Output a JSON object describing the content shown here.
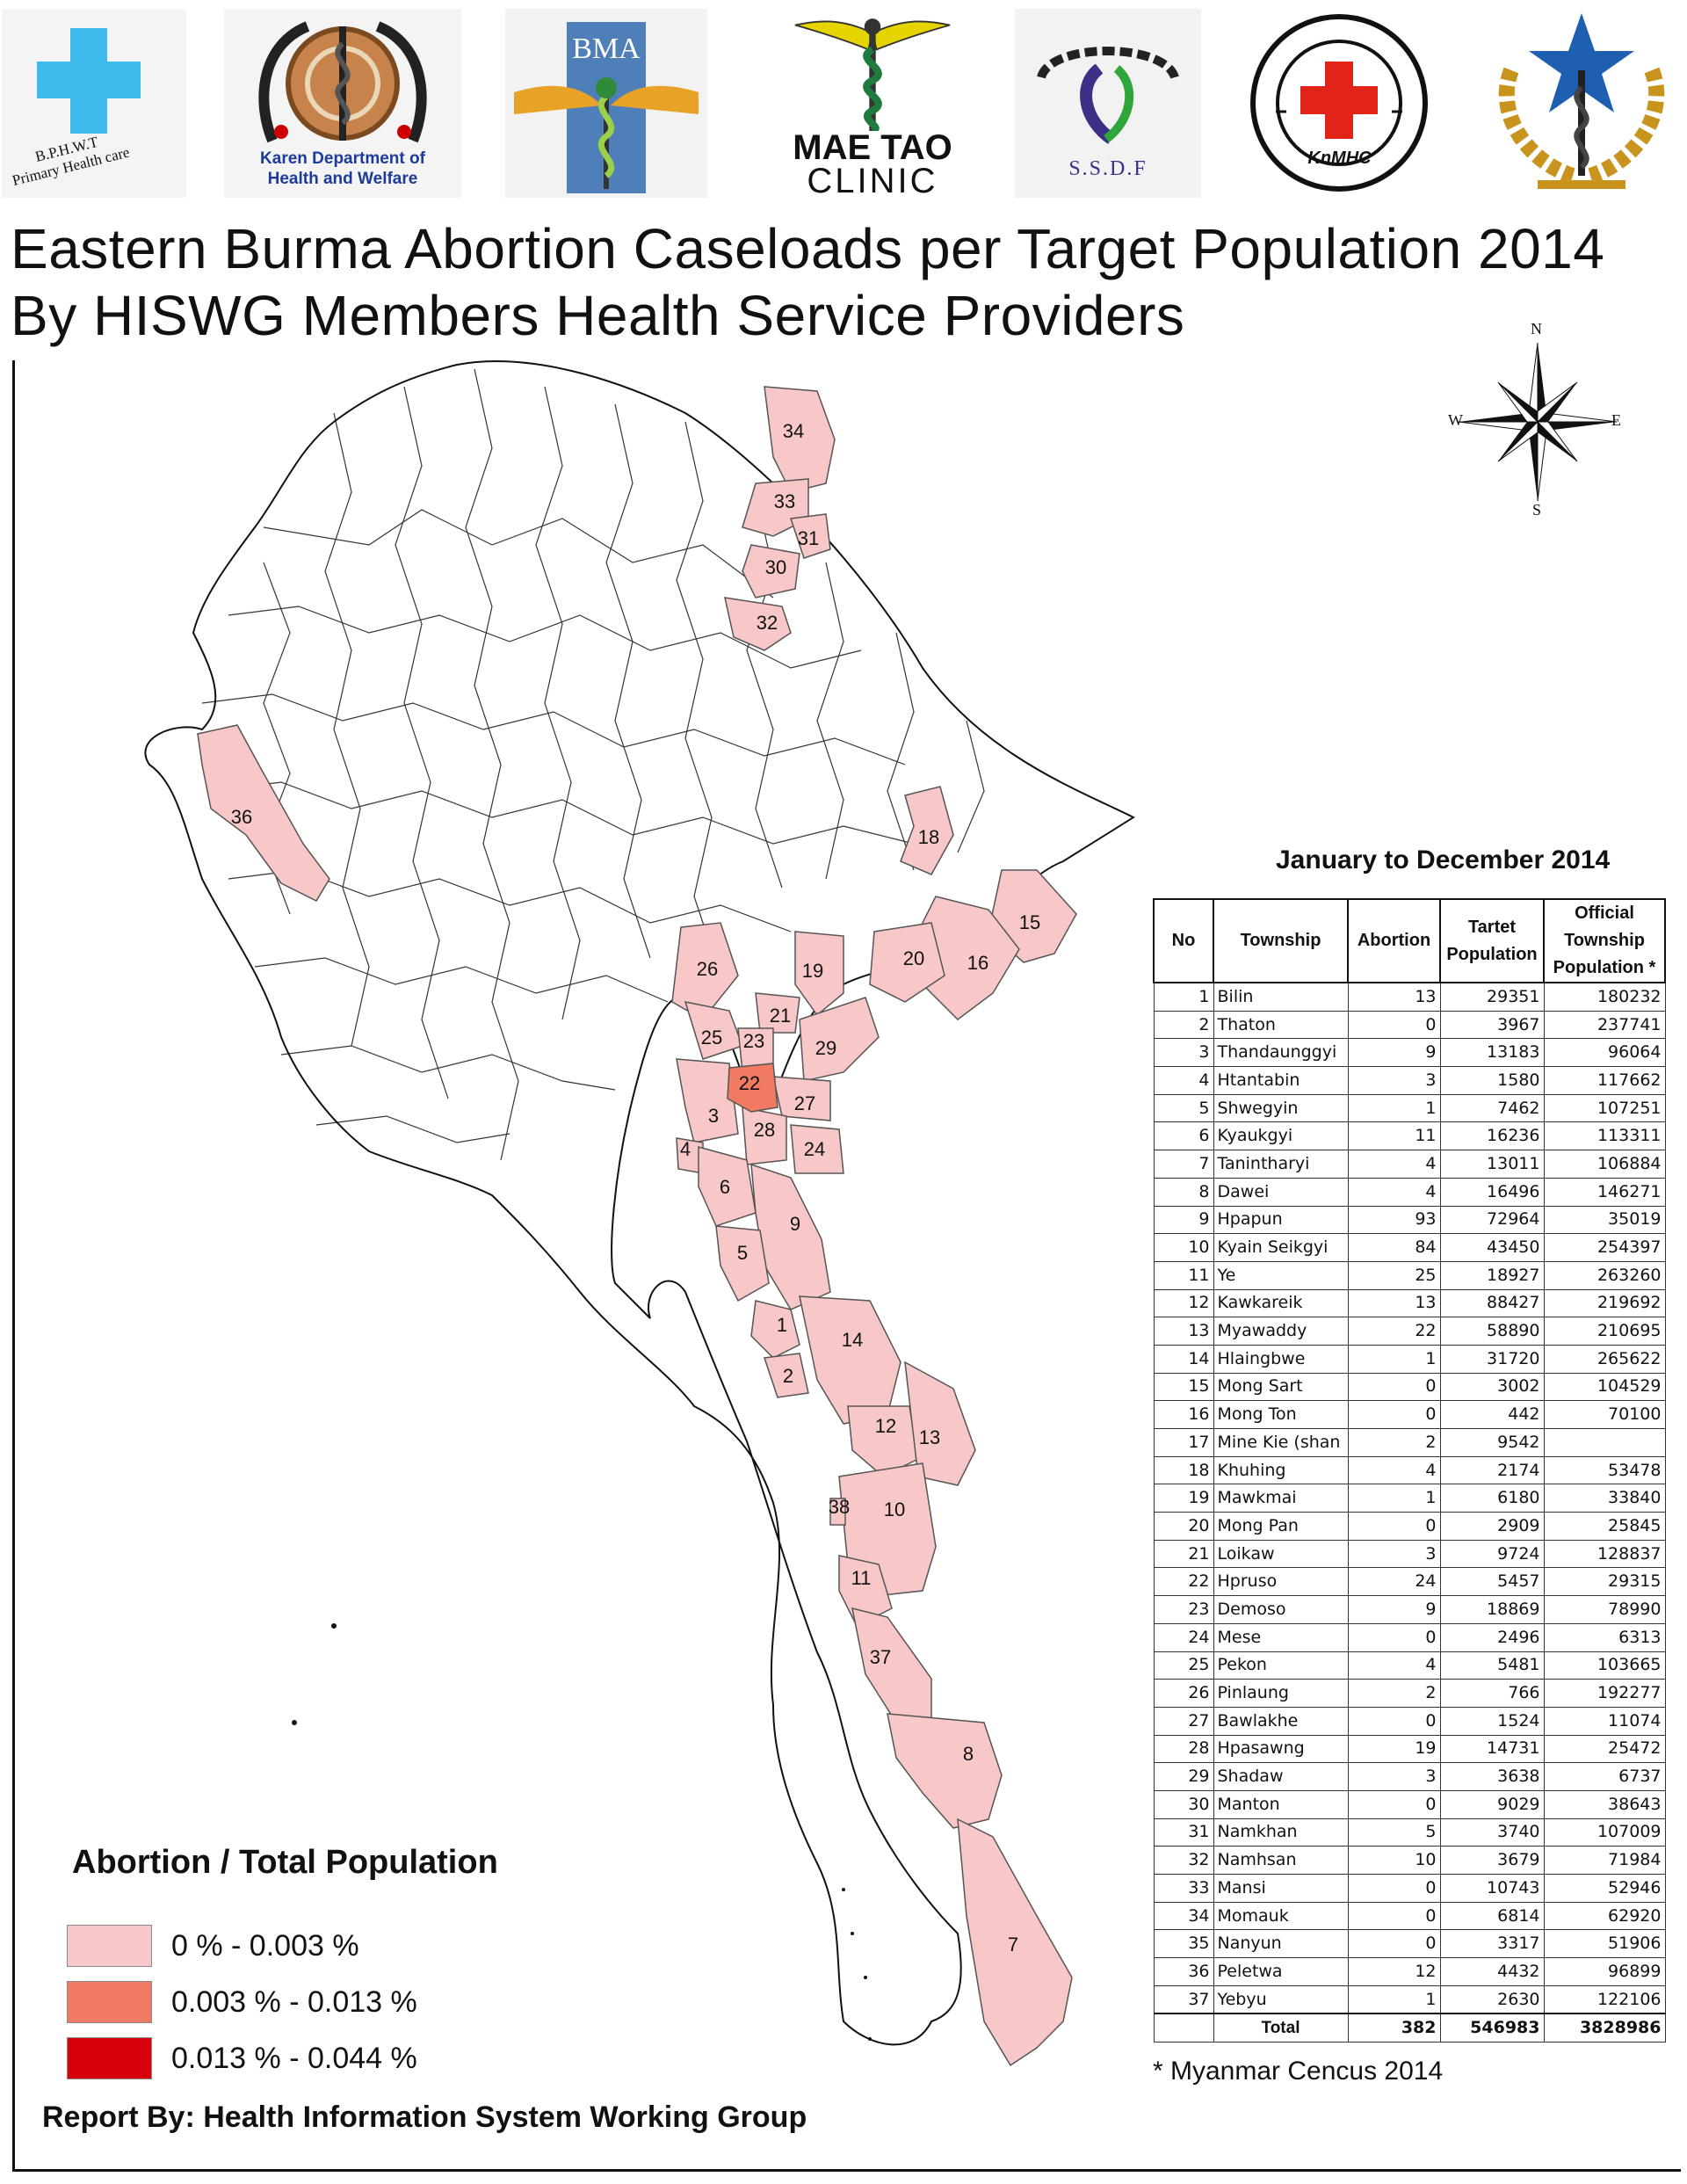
{
  "logos": {
    "bphwt": {
      "line1": "B.P.H.W.T",
      "line2": "Primary Health care"
    },
    "karen": {
      "line1": "Karen Department of",
      "line2": "Health and Welfare"
    },
    "bma": {
      "text": "BMA"
    },
    "maetao": {
      "line1": "MAE TAO",
      "line2": "CLINIC"
    },
    "ssdf": {
      "text": "S.S.D.F"
    },
    "kmhc": {
      "text": "KnMHC"
    }
  },
  "title": {
    "line1": "Eastern Burma Abortion Caseloads per Target Population 2014",
    "line2": "By HISWG Members Health Service Providers"
  },
  "compass": {
    "n": "N",
    "s": "S",
    "e": "E",
    "w": "W"
  },
  "period": "January to December 2014",
  "table": {
    "headers": {
      "no": "No",
      "township": "Township",
      "abortion": "Abortion",
      "target": "Tartet Population",
      "official": "Official Township Population *"
    },
    "rows": [
      {
        "no": "1",
        "township": "Bilin",
        "abortion": "13",
        "target": "29351",
        "official": "180232"
      },
      {
        "no": "2",
        "township": "Thaton",
        "abortion": "0",
        "target": "3967",
        "official": "237741"
      },
      {
        "no": "3",
        "township": "Thandaunggyi",
        "abortion": "9",
        "target": "13183",
        "official": "96064"
      },
      {
        "no": "4",
        "township": "Htantabin",
        "abortion": "3",
        "target": "1580",
        "official": "117662"
      },
      {
        "no": "5",
        "township": "Shwegyin",
        "abortion": "1",
        "target": "7462",
        "official": "107251"
      },
      {
        "no": "6",
        "township": "Kyaukgyi",
        "abortion": "11",
        "target": "16236",
        "official": "113311"
      },
      {
        "no": "7",
        "township": "Tanintharyi",
        "abortion": "4",
        "target": "13011",
        "official": "106884"
      },
      {
        "no": "8",
        "township": "Dawei",
        "abortion": "4",
        "target": "16496",
        "official": "146271"
      },
      {
        "no": "9",
        "township": "Hpapun",
        "abortion": "93",
        "target": "72964",
        "official": "35019"
      },
      {
        "no": "10",
        "township": "Kyain Seikgyi",
        "abortion": "84",
        "target": "43450",
        "official": "254397"
      },
      {
        "no": "11",
        "township": "Ye",
        "abortion": "25",
        "target": "18927",
        "official": "263260"
      },
      {
        "no": "12",
        "township": "Kawkareik",
        "abortion": "13",
        "target": "88427",
        "official": "219692"
      },
      {
        "no": "13",
        "township": "Myawaddy",
        "abortion": "22",
        "target": "58890",
        "official": "210695"
      },
      {
        "no": "14",
        "township": "Hlaingbwe",
        "abortion": "1",
        "target": "31720",
        "official": "265622"
      },
      {
        "no": "15",
        "township": "Mong Sart",
        "abortion": "0",
        "target": "3002",
        "official": "104529"
      },
      {
        "no": "16",
        "township": "Mong Ton",
        "abortion": "0",
        "target": "442",
        "official": "70100"
      },
      {
        "no": "17",
        "township": "Mine Kie (shan",
        "abortion": "2",
        "target": "9542",
        "official": ""
      },
      {
        "no": "18",
        "township": "Khuhing",
        "abortion": "4",
        "target": "2174",
        "official": "53478"
      },
      {
        "no": "19",
        "township": "Mawkmai",
        "abortion": "1",
        "target": "6180",
        "official": "33840"
      },
      {
        "no": "20",
        "township": "Mong Pan",
        "abortion": "0",
        "target": "2909",
        "official": "25845"
      },
      {
        "no": "21",
        "township": "Loikaw",
        "abortion": "3",
        "target": "9724",
        "official": "128837"
      },
      {
        "no": "22",
        "township": "Hpruso",
        "abortion": "24",
        "target": "5457",
        "official": "29315"
      },
      {
        "no": "23",
        "township": "Demoso",
        "abortion": "9",
        "target": "18869",
        "official": "78990"
      },
      {
        "no": "24",
        "township": "Mese",
        "abortion": "0",
        "target": "2496",
        "official": "6313"
      },
      {
        "no": "25",
        "township": "Pekon",
        "abortion": "4",
        "target": "5481",
        "official": "103665"
      },
      {
        "no": "26",
        "township": "Pinlaung",
        "abortion": "2",
        "target": "766",
        "official": "192277"
      },
      {
        "no": "27",
        "township": "Bawlakhe",
        "abortion": "0",
        "target": "1524",
        "official": "11074"
      },
      {
        "no": "28",
        "township": "Hpasawng",
        "abortion": "19",
        "target": "14731",
        "official": "25472"
      },
      {
        "no": "29",
        "township": "Shadaw",
        "abortion": "3",
        "target": "3638",
        "official": "6737"
      },
      {
        "no": "30",
        "township": "Manton",
        "abortion": "0",
        "target": "9029",
        "official": "38643"
      },
      {
        "no": "31",
        "township": "Namkhan",
        "abortion": "5",
        "target": "3740",
        "official": "107009"
      },
      {
        "no": "32",
        "township": "Namhsan",
        "abortion": "10",
        "target": "3679",
        "official": "71984"
      },
      {
        "no": "33",
        "township": "Mansi",
        "abortion": "0",
        "target": "10743",
        "official": "52946"
      },
      {
        "no": "34",
        "township": "Momauk",
        "abortion": "0",
        "target": "6814",
        "official": "62920"
      },
      {
        "no": "35",
        "township": "Nanyun",
        "abortion": "0",
        "target": "3317",
        "official": "51906"
      },
      {
        "no": "36",
        "township": "Peletwa",
        "abortion": "12",
        "target": "4432",
        "official": "96899"
      },
      {
        "no": "37",
        "township": "Yebyu",
        "abortion": "1",
        "target": "2630",
        "official": "122106"
      }
    ],
    "total": {
      "label": "Total",
      "abortion": "382",
      "target": "546983",
      "official": "3828986"
    }
  },
  "footnote": "* Myanmar Cencus 2014",
  "legend": {
    "title": "Abortion / Total Population",
    "classes": [
      {
        "label": "0 % - 0.003 %",
        "color": "#f8c8c8"
      },
      {
        "label": "0.003 % - 0.013 %",
        "color": "#f07a62"
      },
      {
        "label": "0.013 % - 0.044 %",
        "color": "#d8000a"
      }
    ]
  },
  "map": {
    "highlight_color": "#f8c8c8",
    "mid_color": "#f07a62",
    "labels": [
      "1",
      "2",
      "3",
      "4",
      "5",
      "6",
      "7",
      "8",
      "9",
      "10",
      "11",
      "12",
      "13",
      "14",
      "15",
      "16",
      "18",
      "19",
      "20",
      "21",
      "22",
      "23",
      "24",
      "25",
      "26",
      "27",
      "28",
      "29",
      "30",
      "31",
      "32",
      "33",
      "34",
      "36",
      "37",
      "38"
    ]
  },
  "report": "Report  By: Health Information System Working Group"
}
